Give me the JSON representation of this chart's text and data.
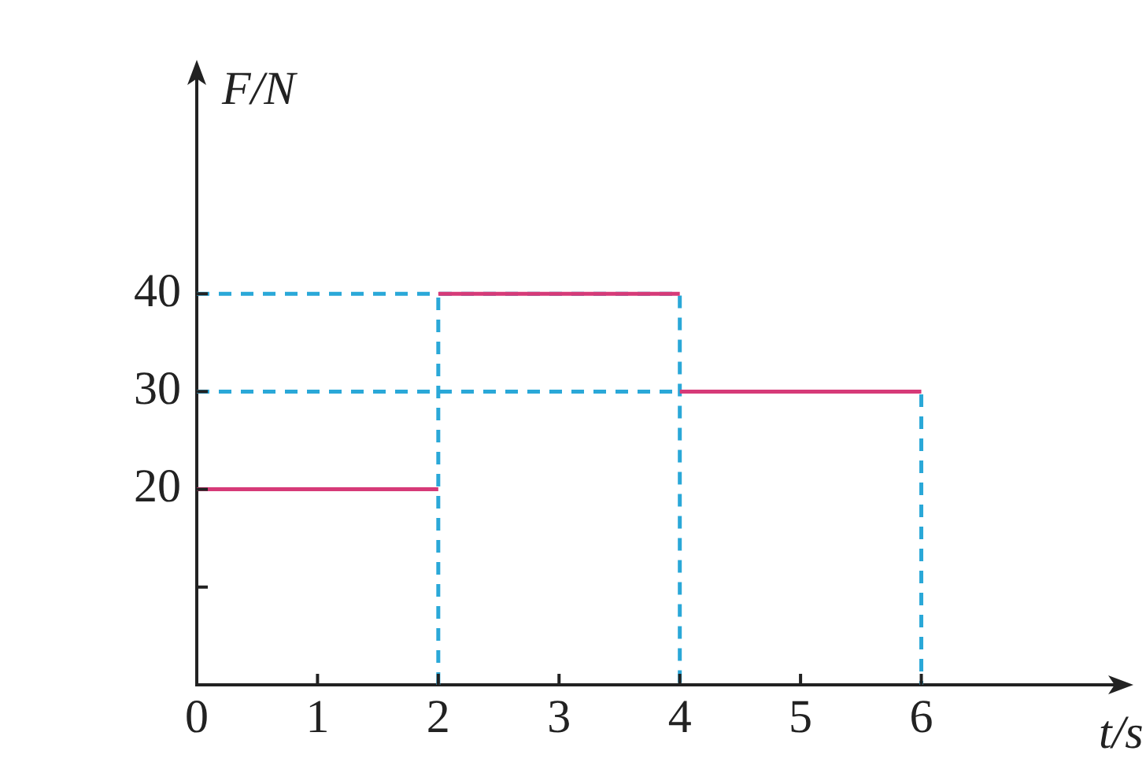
{
  "chart_data": {
    "type": "line",
    "xlabel": "t/s",
    "ylabel": "F/N",
    "xlim": [
      0,
      7.6
    ],
    "ylim": [
      0,
      62
    ],
    "xticks": [
      0,
      1,
      2,
      3,
      4,
      5,
      6
    ],
    "yticks": [
      {
        "value": 10,
        "label": null
      },
      20,
      30,
      40
    ],
    "grid": false,
    "legend": false,
    "marker": "none",
    "series": [
      {
        "color": "#d63a78",
        "line_style": "solid",
        "x": [
          0,
          2
        ],
        "values": [
          20,
          20
        ]
      },
      {
        "color": "#d63a78",
        "line_style": "solid",
        "x": [
          2,
          4
        ],
        "values": [
          40,
          40
        ]
      },
      {
        "color": "#d63a78",
        "line_style": "solid",
        "x": [
          4,
          6
        ],
        "values": [
          30,
          30
        ]
      },
      {
        "color": "#2aa8d8",
        "line_style": "dashed",
        "x": [
          0,
          4,
          4
        ],
        "values": [
          40,
          40,
          0
        ]
      },
      {
        "color": "#2aa8d8",
        "line_style": "dashed",
        "x": [
          2,
          2
        ],
        "values": [
          0,
          40
        ]
      },
      {
        "color": "#2aa8d8",
        "line_style": "dashed",
        "x": [
          0,
          6,
          6
        ],
        "values": [
          30,
          30,
          0
        ]
      }
    ]
  }
}
